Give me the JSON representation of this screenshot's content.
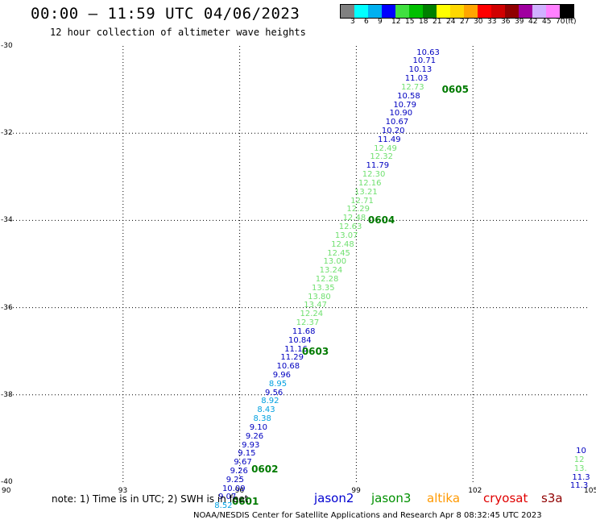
{
  "header": {
    "title": "00:00 – 11:59 UTC 04/06/2023",
    "subtitle": "12 hour collection of altimeter wave heights"
  },
  "legend": {
    "colors": [
      "#808080",
      "#00ffff",
      "#00b0f0",
      "#0000ff",
      "#40e040",
      "#00c000",
      "#008000",
      "#ffff00",
      "#ffd700",
      "#ffa500",
      "#ff0000",
      "#d00000",
      "#900000",
      "#a000a0",
      "#d0b0ff",
      "#ff80ff",
      "#000000"
    ],
    "labels": [
      "3",
      "6",
      "9",
      "12",
      "15",
      "18",
      "21",
      "24",
      "27",
      "30",
      "33",
      "36",
      "39",
      "42",
      "45",
      "70",
      "(ft)"
    ]
  },
  "axes": {
    "y_ticks": [
      "-30",
      "-32",
      "-34",
      "-36",
      "-38",
      "-40"
    ],
    "x_ticks": [
      "90",
      "93",
      "96",
      "99",
      "102",
      "105"
    ]
  },
  "chart_data": {
    "type": "scatter",
    "xlim": [
      90,
      105
    ],
    "ylim": [
      -40,
      -30
    ],
    "grid": true,
    "x_unit": "longitude (°E)",
    "y_unit": "latitude (°)",
    "points": [
      {
        "lon": 100.8,
        "lat": -30.16,
        "v": "10.63",
        "c": "#0000c0"
      },
      {
        "lon": 100.7,
        "lat": -30.36,
        "v": "10.71",
        "c": "#0000c0"
      },
      {
        "lon": 100.6,
        "lat": -30.56,
        "v": "10.13",
        "c": "#0000c0"
      },
      {
        "lon": 100.5,
        "lat": -30.76,
        "v": "11.03",
        "c": "#0000c0"
      },
      {
        "lon": 100.4,
        "lat": -30.96,
        "v": "12.73",
        "c": "#70e070"
      },
      {
        "lon": 100.3,
        "lat": -31.16,
        "v": "10.58",
        "c": "#0000c0"
      },
      {
        "lon": 100.2,
        "lat": -31.36,
        "v": "10.79",
        "c": "#0000c0"
      },
      {
        "lon": 100.1,
        "lat": -31.56,
        "v": "10.90",
        "c": "#0000c0"
      },
      {
        "lon": 100.0,
        "lat": -31.76,
        "v": "10.67",
        "c": "#0000c0"
      },
      {
        "lon": 99.9,
        "lat": -31.96,
        "v": "10.20",
        "c": "#0000c0"
      },
      {
        "lon": 99.8,
        "lat": -32.16,
        "v": "11.49",
        "c": "#0000c0"
      },
      {
        "lon": 99.7,
        "lat": -32.36,
        "v": "12.49",
        "c": "#70e070"
      },
      {
        "lon": 99.6,
        "lat": -32.56,
        "v": "12.32",
        "c": "#70e070"
      },
      {
        "lon": 99.5,
        "lat": -32.76,
        "v": "11.79",
        "c": "#0000c0"
      },
      {
        "lon": 99.4,
        "lat": -32.96,
        "v": "12.30",
        "c": "#70e070"
      },
      {
        "lon": 99.3,
        "lat": -33.16,
        "v": "12.16",
        "c": "#70e070"
      },
      {
        "lon": 99.2,
        "lat": -33.36,
        "v": "13.21",
        "c": "#70e070"
      },
      {
        "lon": 99.1,
        "lat": -33.56,
        "v": "12.71",
        "c": "#70e070"
      },
      {
        "lon": 99.0,
        "lat": -33.76,
        "v": "12.29",
        "c": "#70e070"
      },
      {
        "lon": 98.9,
        "lat": -33.96,
        "v": "12.48",
        "c": "#70e070"
      },
      {
        "lon": 98.8,
        "lat": -34.16,
        "v": "12.63",
        "c": "#70e070"
      },
      {
        "lon": 98.7,
        "lat": -34.36,
        "v": "13.07",
        "c": "#70e070"
      },
      {
        "lon": 98.6,
        "lat": -34.56,
        "v": "12.48",
        "c": "#70e070"
      },
      {
        "lon": 98.5,
        "lat": -34.76,
        "v": "12.45",
        "c": "#70e070"
      },
      {
        "lon": 98.4,
        "lat": -34.96,
        "v": "13.00",
        "c": "#70e070"
      },
      {
        "lon": 98.3,
        "lat": -35.16,
        "v": "13.24",
        "c": "#70e070"
      },
      {
        "lon": 98.2,
        "lat": -35.36,
        "v": "12.28",
        "c": "#70e070"
      },
      {
        "lon": 98.1,
        "lat": -35.56,
        "v": "13.35",
        "c": "#70e070"
      },
      {
        "lon": 98.0,
        "lat": -35.76,
        "v": "13.80",
        "c": "#70e070"
      },
      {
        "lon": 97.9,
        "lat": -35.96,
        "v": "13.47",
        "c": "#70e070"
      },
      {
        "lon": 97.8,
        "lat": -36.16,
        "v": "12.24",
        "c": "#70e070"
      },
      {
        "lon": 97.7,
        "lat": -36.36,
        "v": "12.37",
        "c": "#70e070"
      },
      {
        "lon": 97.6,
        "lat": -36.56,
        "v": "11.68",
        "c": "#0000c0"
      },
      {
        "lon": 97.5,
        "lat": -36.76,
        "v": "10.84",
        "c": "#0000c0"
      },
      {
        "lon": 97.4,
        "lat": -36.96,
        "v": "11.16",
        "c": "#0000c0"
      },
      {
        "lon": 97.3,
        "lat": -37.16,
        "v": "11.29",
        "c": "#0000c0"
      },
      {
        "lon": 97.2,
        "lat": -37.36,
        "v": "10.68",
        "c": "#0000c0"
      },
      {
        "lon": 97.1,
        "lat": -37.56,
        "v": "9.96",
        "c": "#0000c0"
      },
      {
        "lon": 97.0,
        "lat": -37.76,
        "v": "8.95",
        "c": "#00a0e0"
      },
      {
        "lon": 96.9,
        "lat": -37.96,
        "v": "9.56",
        "c": "#0000c0"
      },
      {
        "lon": 96.8,
        "lat": -38.16,
        "v": "8.92",
        "c": "#00a0e0"
      },
      {
        "lon": 96.7,
        "lat": -38.36,
        "v": "8.43",
        "c": "#00a0e0"
      },
      {
        "lon": 96.6,
        "lat": -38.56,
        "v": "8.38",
        "c": "#00a0e0"
      },
      {
        "lon": 96.5,
        "lat": -38.76,
        "v": "9.10",
        "c": "#0000c0"
      },
      {
        "lon": 96.4,
        "lat": -38.96,
        "v": "9.26",
        "c": "#0000c0"
      },
      {
        "lon": 96.3,
        "lat": -39.16,
        "v": "9.93",
        "c": "#0000c0"
      },
      {
        "lon": 96.2,
        "lat": -39.36,
        "v": "9.15",
        "c": "#0000c0"
      },
      {
        "lon": 96.1,
        "lat": -39.56,
        "v": "9.67",
        "c": "#0000c0"
      },
      {
        "lon": 96.0,
        "lat": -39.76,
        "v": "9.26",
        "c": "#0000c0"
      },
      {
        "lon": 95.9,
        "lat": -39.96,
        "v": "9.25",
        "c": "#0000c0"
      },
      {
        "lon": 95.8,
        "lat": -40.16,
        "v": "10.09",
        "c": "#0000c0"
      },
      {
        "lon": 95.7,
        "lat": -40.36,
        "v": "9.07",
        "c": "#0000c0"
      },
      {
        "lon": 95.6,
        "lat": -40.56,
        "v": "8.52",
        "c": "#00a0e0"
      },
      {
        "lon": 104.9,
        "lat": -39.3,
        "v": "10",
        "c": "#0000c0"
      },
      {
        "lon": 104.85,
        "lat": -39.5,
        "v": "12",
        "c": "#70e070"
      },
      {
        "lon": 104.85,
        "lat": -39.7,
        "v": "13.",
        "c": "#70e070"
      },
      {
        "lon": 104.8,
        "lat": -39.9,
        "v": "11.3",
        "c": "#0000c0"
      },
      {
        "lon": 104.75,
        "lat": -40.1,
        "v": "11.3",
        "c": "#0000c0"
      }
    ],
    "day_labels": [
      {
        "text": "0605",
        "lon": 101.2,
        "lat": -31.0
      },
      {
        "text": "0604",
        "lon": 99.3,
        "lat": -34.0
      },
      {
        "text": "0603",
        "lon": 97.6,
        "lat": -37.0
      },
      {
        "text": "0602",
        "lon": 96.3,
        "lat": -39.7
      },
      {
        "text": "0601",
        "lon": 95.8,
        "lat": -40.45
      }
    ]
  },
  "footer": {
    "note": "note: 1) Time is in UTC; 2) SWH is in feet",
    "satellites": [
      {
        "name": "jason2",
        "color": "#0000d0"
      },
      {
        "name": "jason3",
        "color": "#009000"
      },
      {
        "name": "altika",
        "color": "#ff9900"
      },
      {
        "name": "cryosat",
        "color": "#e00000"
      },
      {
        "name": "s3a",
        "color": "#900000"
      }
    ],
    "credit": "NOAA/NESDIS Center for Satellite Applications and Research    Apr  8 08:32:45 UTC 2023"
  }
}
